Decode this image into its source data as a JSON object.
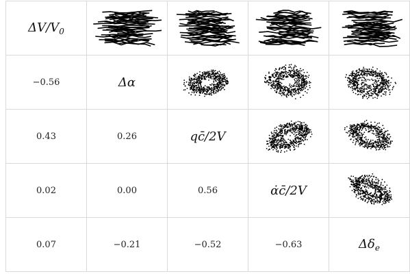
{
  "chart_data": {
    "type": "pairplot-matrix",
    "variables": [
      "ΔV/V0",
      "Δα",
      "qc̄/2V",
      "α̇c̄/2V",
      "Δδe"
    ],
    "labels": {
      "v0_main": "ΔV/V",
      "v0_sub": "0",
      "v1": "Δα",
      "v2": "qc̄/2V",
      "v3": "α̇c̄/2V",
      "v4_main": "Δδ",
      "v4_sub": "e"
    },
    "correlations_lower": [
      {
        "row": 1,
        "col": 0,
        "value": "−0.56"
      },
      {
        "row": 2,
        "col": 0,
        "value": "0.43"
      },
      {
        "row": 2,
        "col": 1,
        "value": "0.26"
      },
      {
        "row": 3,
        "col": 0,
        "value": "0.02"
      },
      {
        "row": 3,
        "col": 1,
        "value": "0.00"
      },
      {
        "row": 3,
        "col": 2,
        "value": "0.56"
      },
      {
        "row": 4,
        "col": 0,
        "value": "0.07"
      },
      {
        "row": 4,
        "col": 1,
        "value": "−0.21"
      },
      {
        "row": 4,
        "col": 2,
        "value": "−0.52"
      },
      {
        "row": 4,
        "col": 3,
        "value": "−0.63"
      }
    ],
    "upper_scatter": [
      {
        "row": 0,
        "col": 1,
        "shape": "horizontal-band",
        "corr": -0.56
      },
      {
        "row": 0,
        "col": 2,
        "shape": "horizontal-band",
        "corr": 0.43
      },
      {
        "row": 0,
        "col": 3,
        "shape": "horizontal-band",
        "corr": 0.02
      },
      {
        "row": 0,
        "col": 4,
        "shape": "horizontal-band",
        "corr": 0.07
      },
      {
        "row": 1,
        "col": 2,
        "shape": "blob",
        "corr": 0.26
      },
      {
        "row": 1,
        "col": 3,
        "shape": "blob",
        "corr": 0.0
      },
      {
        "row": 1,
        "col": 4,
        "shape": "blob",
        "corr": -0.21
      },
      {
        "row": 2,
        "col": 3,
        "shape": "blob",
        "corr": 0.56
      },
      {
        "row": 2,
        "col": 4,
        "shape": "blob",
        "corr": -0.52
      },
      {
        "row": 3,
        "col": 4,
        "shape": "blob",
        "corr": -0.63
      }
    ],
    "marker_color": "#000000",
    "grid_color": "#d9d9d9"
  }
}
